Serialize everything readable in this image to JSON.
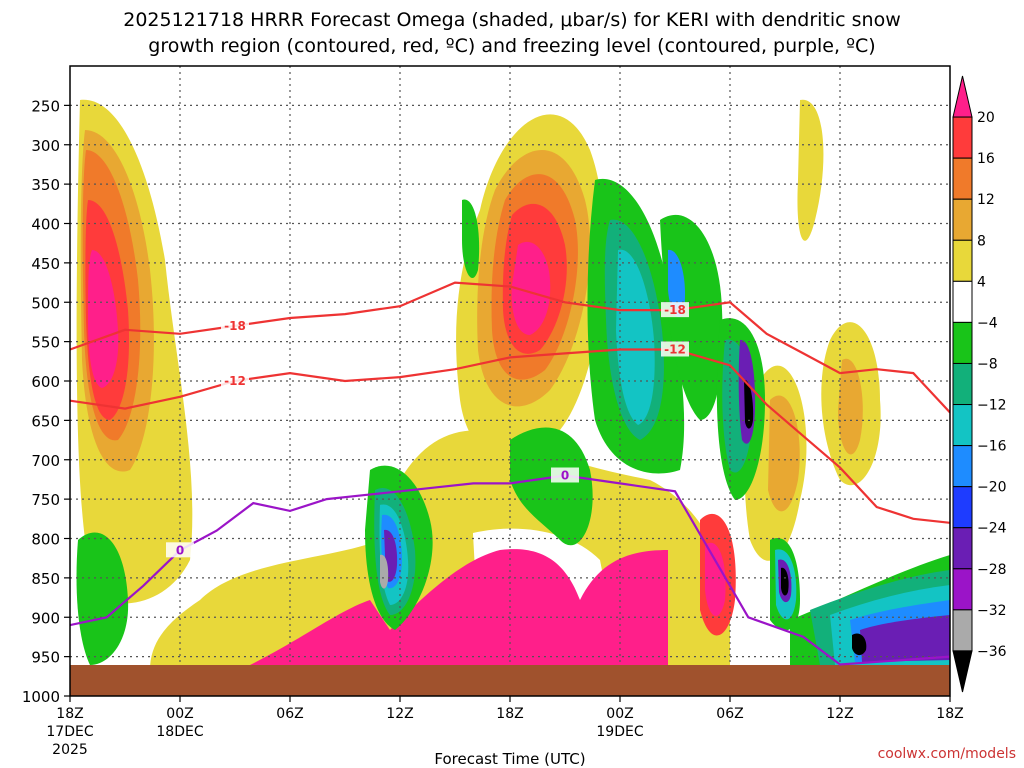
{
  "chart_data": {
    "type": "heatmap",
    "title_line1": "2025121718 HRRR Forecast Omega (shaded, μbar/s) for KERI with dendritic snow",
    "title_line2": "growth region (contoured, red, ºC) and freezing level (contoured, purple, ºC)",
    "xlabel": "Forecast Time (UTC)",
    "source": "coolwx.com/models",
    "y_ticks": [
      250,
      300,
      350,
      400,
      450,
      500,
      550,
      600,
      650,
      700,
      750,
      800,
      850,
      900,
      950,
      1000
    ],
    "y_range_hpa": [
      200,
      1000
    ],
    "x_range_hours": [
      0,
      48
    ],
    "x_ticks": [
      {
        "hour": 0,
        "label": "18Z",
        "label2": "17DEC",
        "label3": "2025"
      },
      {
        "hour": 6,
        "label": "00Z",
        "label2": "18DEC"
      },
      {
        "hour": 12,
        "label": "06Z"
      },
      {
        "hour": 18,
        "label": "12Z"
      },
      {
        "hour": 24,
        "label": "18Z"
      },
      {
        "hour": 30,
        "label": "00Z",
        "label2": "19DEC"
      },
      {
        "hour": 36,
        "label": "06Z"
      },
      {
        "hour": 42,
        "label": "12Z"
      },
      {
        "hour": 48,
        "label": "18Z"
      }
    ],
    "colorbar": {
      "levels": [
        20,
        16,
        12,
        8,
        4,
        -4,
        -8,
        -12,
        -16,
        -20,
        -24,
        -28,
        -32,
        -36
      ],
      "colors": [
        "#ff1f8a",
        "#ff3b3b",
        "#f07a2a",
        "#e8a832",
        "#e8d83a",
        "#ffffff",
        "#19c419",
        "#12b07a",
        "#13c4c4",
        "#1e8cff",
        "#1e3cff",
        "#6a1eb4",
        "#9b14c8",
        "#aaaaaa",
        "#000000"
      ]
    },
    "contours": {
      "dgz_minus18": {
        "label": "-18",
        "color": "#ee3333",
        "points": [
          [
            0,
            560
          ],
          [
            3,
            535
          ],
          [
            6,
            540
          ],
          [
            9,
            530
          ],
          [
            12,
            520
          ],
          [
            15,
            515
          ],
          [
            18,
            505
          ],
          [
            21,
            475
          ],
          [
            24,
            480
          ],
          [
            27,
            500
          ],
          [
            30,
            510
          ],
          [
            33,
            510
          ],
          [
            36,
            500
          ],
          [
            38,
            540
          ],
          [
            40,
            565
          ],
          [
            42,
            590
          ],
          [
            44,
            585
          ],
          [
            46,
            590
          ],
          [
            48,
            640
          ]
        ]
      },
      "dgz_minus12": {
        "label": "-12",
        "color": "#ee3333",
        "points": [
          [
            0,
            625
          ],
          [
            3,
            635
          ],
          [
            6,
            620
          ],
          [
            9,
            600
          ],
          [
            12,
            590
          ],
          [
            15,
            600
          ],
          [
            18,
            595
          ],
          [
            21,
            585
          ],
          [
            24,
            570
          ],
          [
            27,
            565
          ],
          [
            30,
            560
          ],
          [
            33,
            560
          ],
          [
            36,
            580
          ],
          [
            38,
            630
          ],
          [
            40,
            670
          ],
          [
            42,
            710
          ],
          [
            44,
            760
          ],
          [
            46,
            775
          ],
          [
            48,
            780
          ]
        ]
      },
      "freezing_level": {
        "label": "0",
        "color": "#9b14c8",
        "points": [
          [
            0,
            910
          ],
          [
            2,
            900
          ],
          [
            4,
            860
          ],
          [
            6,
            815
          ],
          [
            8,
            790
          ],
          [
            10,
            755
          ],
          [
            12,
            765
          ],
          [
            14,
            750
          ],
          [
            16,
            745
          ],
          [
            18,
            740
          ],
          [
            20,
            735
          ],
          [
            22,
            730
          ],
          [
            24,
            730
          ],
          [
            27,
            720
          ],
          [
            30,
            730
          ],
          [
            33,
            740
          ],
          [
            35,
            820
          ],
          [
            37,
            900
          ],
          [
            40,
            925
          ],
          [
            42,
            960
          ],
          [
            45,
            955
          ],
          [
            48,
            950
          ]
        ]
      }
    },
    "terrain_color": "#a0522d"
  }
}
